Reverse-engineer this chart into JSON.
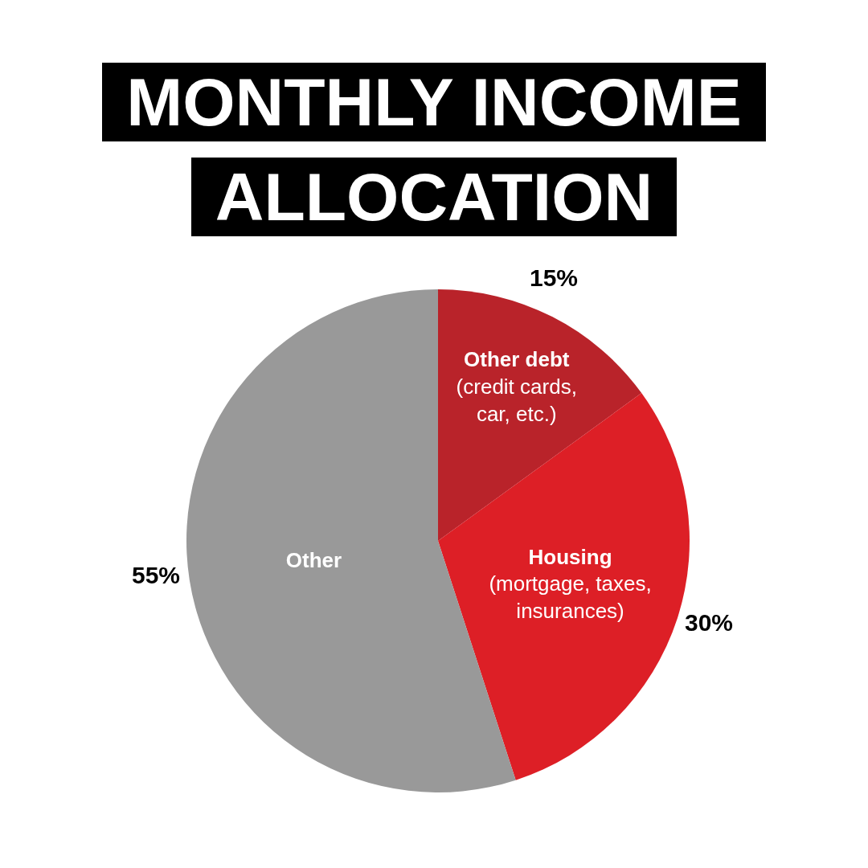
{
  "chart_data": {
    "type": "pie",
    "title": "MONTHLY INCOME ALLOCATION",
    "categories": [
      "Other debt\n(credit cards,\ncar, etc.)",
      "Housing\n(mortgage, taxes,\ninsurances)",
      "Other"
    ],
    "values": [
      15,
      30,
      55
    ],
    "colors": [
      "#b9232a",
      "#dd1f26",
      "#999999"
    ],
    "value_labels": [
      "15%",
      "30%",
      "55%"
    ],
    "legend": false
  }
}
